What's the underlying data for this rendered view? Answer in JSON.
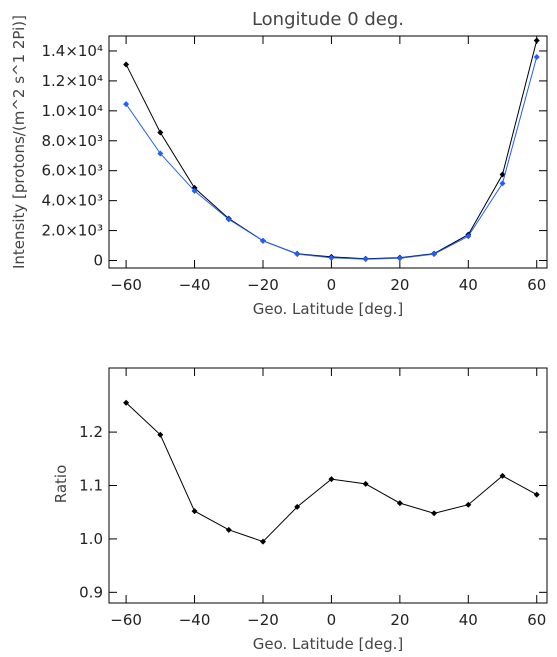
{
  "chart_data": [
    {
      "type": "line",
      "title": "Longitude 0 deg.",
      "xlabel": "Geo. Latitude [deg.]",
      "ylabel": "Intensity [protons/(m^2 s^1 2Pi)]",
      "xlim": [
        -65,
        63
      ],
      "ylim": [
        -500,
        15000
      ],
      "xticks": [
        -60,
        -40,
        -20,
        0,
        20,
        40,
        60
      ],
      "yticks": [
        {
          "value": 0,
          "label": "0"
        },
        {
          "value": 2000,
          "label": "2.0×10³"
        },
        {
          "value": 4000,
          "label": "4.0×10³"
        },
        {
          "value": 6000,
          "label": "6.0×10³"
        },
        {
          "value": 8000,
          "label": "8.0×10³"
        },
        {
          "value": 10000,
          "label": "1.0×10⁴"
        },
        {
          "value": 12000,
          "label": "1.2×10⁴"
        },
        {
          "value": 14000,
          "label": "1.4×10⁴"
        }
      ],
      "x": [
        -60,
        -50,
        -40,
        -30,
        -20,
        -10,
        0,
        10,
        20,
        30,
        40,
        50,
        60
      ],
      "series": [
        {
          "color": "#000000",
          "values": [
            13100,
            8550,
            4850,
            2800,
            1320,
            450,
            240,
            120,
            190,
            460,
            1730,
            5750,
            14700
          ]
        },
        {
          "color": "#1f5fff",
          "values": [
            10450,
            7150,
            4650,
            2750,
            1320,
            430,
            180,
            90,
            150,
            430,
            1620,
            5150,
            13600
          ]
        }
      ],
      "grid": false
    },
    {
      "type": "line",
      "title": "",
      "xlabel": "Geo. Latitude [deg.]",
      "ylabel": "Ratio",
      "xlim": [
        -65,
        63
      ],
      "ylim": [
        0.88,
        1.32
      ],
      "xticks": [
        -60,
        -40,
        -20,
        0,
        20,
        40,
        60
      ],
      "yticks": [
        {
          "value": 0.9,
          "label": "0.9"
        },
        {
          "value": 1.0,
          "label": "1.0"
        },
        {
          "value": 1.1,
          "label": "1.1"
        },
        {
          "value": 1.2,
          "label": "1.2"
        }
      ],
      "x": [
        -60,
        -50,
        -40,
        -30,
        -20,
        -10,
        0,
        10,
        20,
        30,
        40,
        50,
        60
      ],
      "series": [
        {
          "color": "#000000",
          "values": [
            1.255,
            1.195,
            1.052,
            1.017,
            0.995,
            1.06,
            1.112,
            1.103,
            1.067,
            1.048,
            1.064,
            1.118,
            1.083
          ]
        }
      ],
      "grid": false
    }
  ]
}
